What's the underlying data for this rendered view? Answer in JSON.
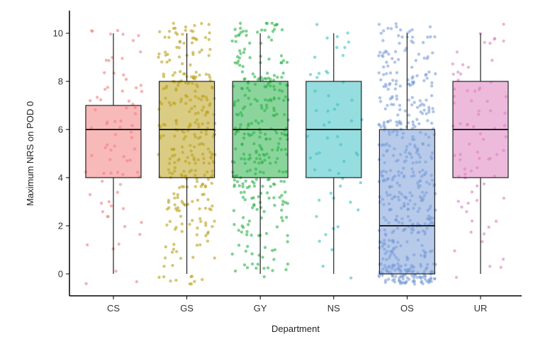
{
  "chart_data": {
    "type": "box",
    "xlabel": "Department",
    "ylabel": "Maximum NRS on POD 0",
    "ylim": [
      -0.9,
      10.9
    ],
    "yticks": [
      0,
      2,
      4,
      6,
      8,
      10
    ],
    "grid": false,
    "legend": "none",
    "jitter_points": true,
    "categories": [
      "CS",
      "GS",
      "GY",
      "NS",
      "OS",
      "UR"
    ],
    "series": [
      {
        "category": "CS",
        "color": "#F28080",
        "whisker_low": 0,
        "q1": 4,
        "median": 6,
        "q3": 7,
        "whisker_high": 10,
        "point_density": "medium"
      },
      {
        "category": "GS",
        "color": "#BBA21E",
        "whisker_low": 0,
        "q1": 4,
        "median": 6,
        "q3": 8,
        "whisker_high": 10,
        "point_density": "very-high"
      },
      {
        "category": "GY",
        "color": "#2CB34A",
        "whisker_low": 0,
        "q1": 4,
        "median": 6,
        "q3": 8,
        "whisker_high": 10,
        "point_density": "very-high"
      },
      {
        "category": "NS",
        "color": "#3EC1C3",
        "whisker_low": 0,
        "q1": 4,
        "median": 6,
        "q3": 8,
        "whisker_high": 10,
        "point_density": "low"
      },
      {
        "category": "OS",
        "color": "#7B9ED8",
        "whisker_low": 0,
        "q1": 0,
        "median": 2,
        "q3": 6,
        "whisker_high": 10,
        "point_density": "very-high"
      },
      {
        "category": "UR",
        "color": "#DE82C0",
        "whisker_low": 0,
        "q1": 4,
        "median": 6,
        "q3": 8,
        "whisker_high": 10,
        "point_density": "medium"
      }
    ]
  }
}
